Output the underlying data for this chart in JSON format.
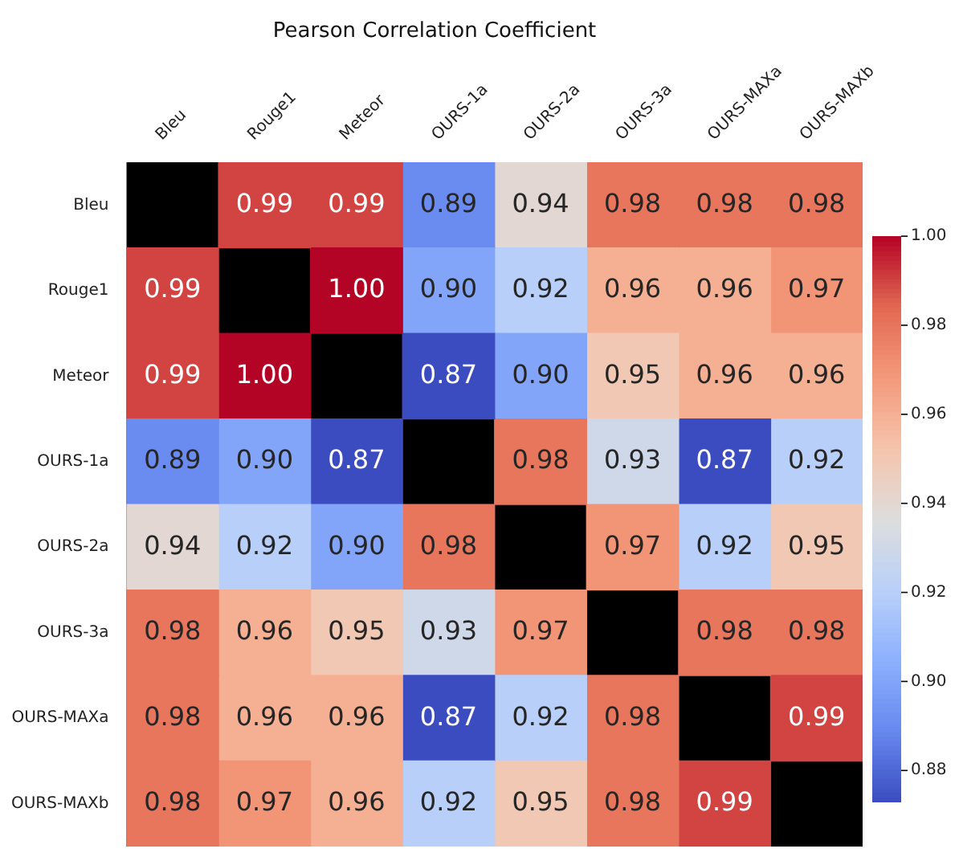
{
  "chart_data": {
    "type": "heatmap",
    "title": "Pearson Correlation Coefficient",
    "categories": [
      "Bleu",
      "Rouge1",
      "Meteor",
      "OURS-1a",
      "OURS-2a",
      "OURS-3a",
      "OURS-MAXa",
      "OURS-MAXb"
    ],
    "y_categories": [
      "Bleu",
      "Rouge1",
      "Meteor",
      "OURS-1a",
      "OURS-2a",
      "OURS-3a",
      "OURS-MAXa",
      "OURS-MAXb"
    ],
    "cells": [
      [
        null,
        0.99,
        0.99,
        0.89,
        0.94,
        0.98,
        0.98,
        0.98
      ],
      [
        0.99,
        null,
        1.0,
        0.9,
        0.92,
        0.96,
        0.96,
        0.97
      ],
      [
        0.99,
        1.0,
        null,
        0.87,
        0.9,
        0.95,
        0.96,
        0.96
      ],
      [
        0.89,
        0.9,
        0.87,
        null,
        0.98,
        0.93,
        0.87,
        0.92
      ],
      [
        0.94,
        0.92,
        0.9,
        0.98,
        null,
        0.97,
        0.92,
        0.95
      ],
      [
        0.98,
        0.96,
        0.95,
        0.93,
        0.97,
        null,
        0.98,
        0.98
      ],
      [
        0.98,
        0.96,
        0.96,
        0.87,
        0.92,
        0.98,
        null,
        0.99
      ],
      [
        0.98,
        0.97,
        0.96,
        0.92,
        0.95,
        0.98,
        0.99,
        null
      ]
    ],
    "cell_labels": [
      [
        null,
        "0.99",
        "0.99",
        "0.89",
        "0.94",
        "0.98",
        "0.98",
        "0.98"
      ],
      [
        "0.99",
        null,
        "1.00",
        "0.90",
        "0.92",
        "0.96",
        "0.96",
        "0.97"
      ],
      [
        "0.99",
        "1.00",
        null,
        "0.87",
        "0.90",
        "0.95",
        "0.96",
        "0.96"
      ],
      [
        "0.89",
        "0.90",
        "0.87",
        null,
        "0.98",
        "0.93",
        "0.87",
        "0.92"
      ],
      [
        "0.94",
        "0.92",
        "0.90",
        "0.98",
        null,
        "0.97",
        "0.92",
        "0.95"
      ],
      [
        "0.98",
        "0.96",
        "0.95",
        "0.93",
        "0.97",
        null,
        "0.98",
        "0.98"
      ],
      [
        "0.98",
        "0.96",
        "0.96",
        "0.87",
        "0.92",
        "0.98",
        null,
        "0.99"
      ],
      [
        "0.98",
        "0.97",
        "0.96",
        "0.92",
        "0.95",
        "0.98",
        "0.99",
        null
      ]
    ],
    "clim": [
      0.873,
      1.0
    ],
    "cticks": [
      {
        "value": 0.88,
        "label": "0.88"
      },
      {
        "value": 0.9,
        "label": "0.90"
      },
      {
        "value": 0.92,
        "label": "0.92"
      },
      {
        "value": 0.94,
        "label": "0.94"
      },
      {
        "value": 0.96,
        "label": "0.96"
      },
      {
        "value": 0.98,
        "label": "0.98"
      },
      {
        "value": 1.0,
        "label": "1.00"
      }
    ]
  }
}
